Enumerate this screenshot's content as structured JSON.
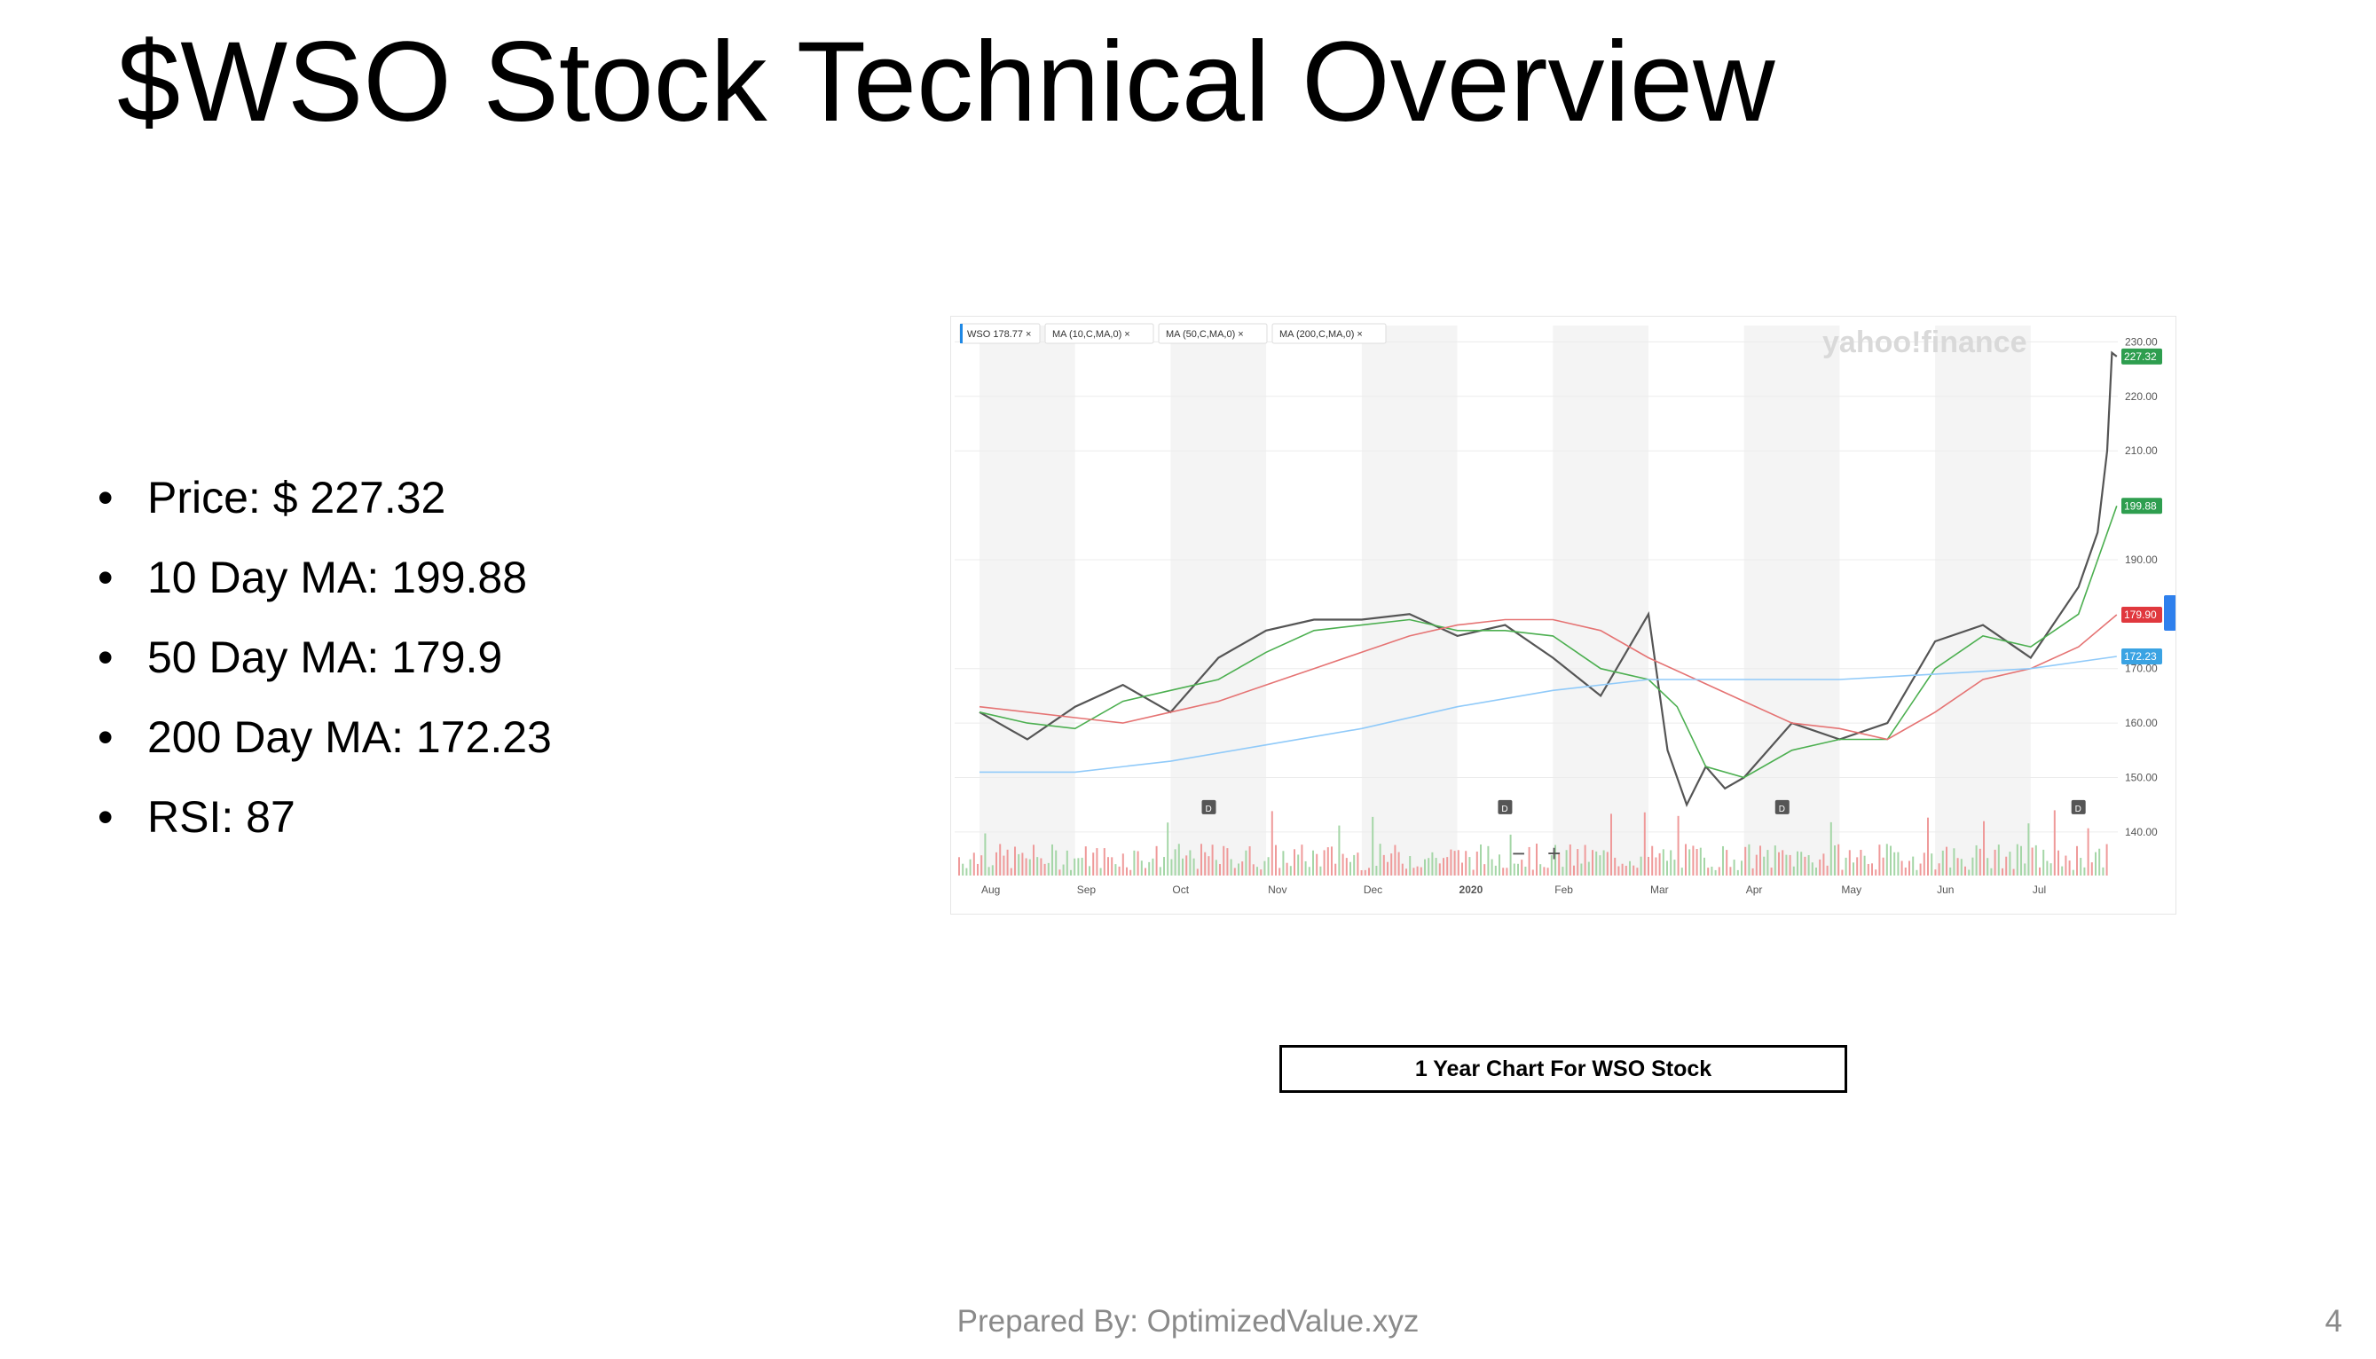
{
  "slide": {
    "title": "$WSO Stock Technical Overview",
    "bullets": [
      "Price: $ 227.32",
      "10 Day MA: 199.88",
      "50 Day MA: 179.9",
      "200 Day MA: 172.23",
      "RSI: 87"
    ],
    "caption": "1 Year Chart For WSO Stock",
    "footer": "Prepared By: OptimizedValue.xyz",
    "page_number": "4"
  },
  "chart_data": {
    "type": "line",
    "title": "",
    "watermark": "yahoo!finance",
    "legend_tags": [
      "WSO 178.77",
      "MA (10,C,MA,0)",
      "MA (50,C,MA,0)",
      "MA (200,C,MA,0)"
    ],
    "x_ticks": [
      "Aug",
      "Sep",
      "Oct",
      "Nov",
      "Dec",
      "2020",
      "Feb",
      "Mar",
      "Apr",
      "May",
      "Jun",
      "Jul"
    ],
    "y_ticks": [
      140,
      150,
      160,
      170,
      190,
      210,
      220,
      230
    ],
    "y_tick_labels": [
      "140.00",
      "150.00",
      "160.00",
      "170.00",
      "190.00",
      "210.00",
      "220.00",
      "230.00"
    ],
    "ylim": [
      132,
      233
    ],
    "grid": true,
    "zoom_controls": [
      "−",
      "+"
    ],
    "dividend_marker": "D",
    "dividend_months": [
      2.4,
      5.5,
      8.4,
      11.5
    ],
    "price_labels": [
      {
        "text": "227.32",
        "value": 227.32,
        "color": "#2e9e4f"
      },
      {
        "text": "199.88",
        "value": 199.88,
        "color": "#2e9e4f"
      },
      {
        "text": "179.90",
        "value": 179.9,
        "color": "#e0383e"
      },
      {
        "text": "172.23",
        "value": 172.23,
        "color": "#3aa3e3"
      }
    ],
    "series": [
      {
        "name": "WSO",
        "color": "#555555",
        "x": [
          0,
          0.5,
          1,
          1.5,
          2,
          2.5,
          3,
          3.5,
          4,
          4.5,
          5,
          5.5,
          6,
          6.5,
          7,
          7.2,
          7.4,
          7.6,
          7.8,
          8,
          8.5,
          9,
          9.5,
          10,
          10.5,
          11,
          11.5,
          11.7,
          11.8,
          11.85,
          11.9
        ],
        "values": [
          162,
          157,
          163,
          167,
          162,
          172,
          177,
          179,
          179,
          180,
          176,
          178,
          172,
          165,
          180,
          155,
          145,
          152,
          148,
          150,
          160,
          157,
          160,
          175,
          178,
          172,
          185,
          195,
          210,
          228,
          227.32
        ]
      },
      {
        "name": "MA (10,C,MA,0)",
        "color": "#4caf50",
        "x": [
          0,
          0.5,
          1,
          1.5,
          2,
          2.5,
          3,
          3.5,
          4,
          4.5,
          5,
          5.5,
          6,
          6.5,
          7,
          7.3,
          7.6,
          8,
          8.5,
          9,
          9.5,
          10,
          10.5,
          11,
          11.5,
          11.9
        ],
        "values": [
          162,
          160,
          159,
          164,
          166,
          168,
          173,
          177,
          178,
          179,
          177,
          177,
          176,
          170,
          168,
          163,
          152,
          150,
          155,
          157,
          157,
          170,
          176,
          174,
          180,
          199.88
        ]
      },
      {
        "name": "MA (50,C,MA,0)",
        "color": "#e57373",
        "x": [
          0,
          0.5,
          1,
          1.5,
          2,
          2.5,
          3,
          3.5,
          4,
          4.5,
          5,
          5.5,
          6,
          6.5,
          7,
          7.5,
          8,
          8.5,
          9,
          9.5,
          10,
          10.5,
          11,
          11.5,
          11.9
        ],
        "values": [
          163,
          162,
          161,
          160,
          162,
          164,
          167,
          170,
          173,
          176,
          178,
          179,
          179,
          177,
          172,
          168,
          164,
          160,
          159,
          157,
          162,
          168,
          170,
          174,
          179.9
        ]
      },
      {
        "name": "MA (200,C,MA,0)",
        "color": "#90caf9",
        "x": [
          0,
          1,
          2,
          3,
          4,
          5,
          6,
          7,
          8,
          9,
          10,
          11,
          11.9
        ],
        "values": [
          151,
          151,
          153,
          156,
          159,
          163,
          166,
          168,
          168,
          168,
          169,
          170,
          172.23
        ]
      }
    ]
  }
}
